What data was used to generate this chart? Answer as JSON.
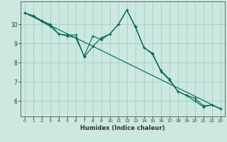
{
  "xlabel": "Humidex (Indice chaleur)",
  "bg_color": "#cce8e0",
  "grid_color": "#99ccbb",
  "line_color": "#006655",
  "xlim": [
    -0.5,
    23.5
  ],
  "ylim": [
    5.2,
    11.2
  ],
  "yticks": [
    6,
    7,
    8,
    9,
    10
  ],
  "xticks": [
    0,
    1,
    2,
    3,
    4,
    5,
    6,
    7,
    8,
    9,
    10,
    11,
    12,
    13,
    14,
    15,
    16,
    17,
    18,
    19,
    20,
    21,
    22,
    23
  ],
  "series1_x": [
    0,
    1,
    2,
    3,
    4,
    5,
    6,
    7,
    8,
    9,
    10,
    11,
    12,
    13,
    14,
    15,
    16,
    17,
    18,
    19,
    20,
    21,
    22,
    23
  ],
  "series1_y": [
    10.6,
    10.45,
    10.2,
    10.0,
    9.5,
    9.45,
    9.45,
    8.3,
    8.85,
    9.3,
    9.5,
    10.0,
    10.75,
    9.9,
    8.8,
    8.5,
    7.6,
    7.15,
    6.5,
    6.3,
    6.0,
    5.7,
    5.8,
    5.6
  ],
  "series2_x": [
    0,
    1,
    2,
    3,
    4,
    5,
    6,
    7,
    8,
    9,
    10,
    11,
    12,
    13,
    14,
    15,
    16,
    17,
    18,
    19,
    20,
    21,
    22,
    23
  ],
  "series2_y": [
    10.6,
    10.45,
    10.15,
    9.9,
    9.5,
    9.4,
    9.3,
    8.35,
    9.4,
    9.2,
    9.5,
    10.0,
    10.75,
    9.85,
    8.8,
    8.45,
    7.55,
    7.1,
    6.5,
    6.3,
    6.15,
    5.75,
    5.8,
    5.6
  ],
  "series3_x": [
    0,
    23
  ],
  "series3_y": [
    10.6,
    5.6
  ]
}
